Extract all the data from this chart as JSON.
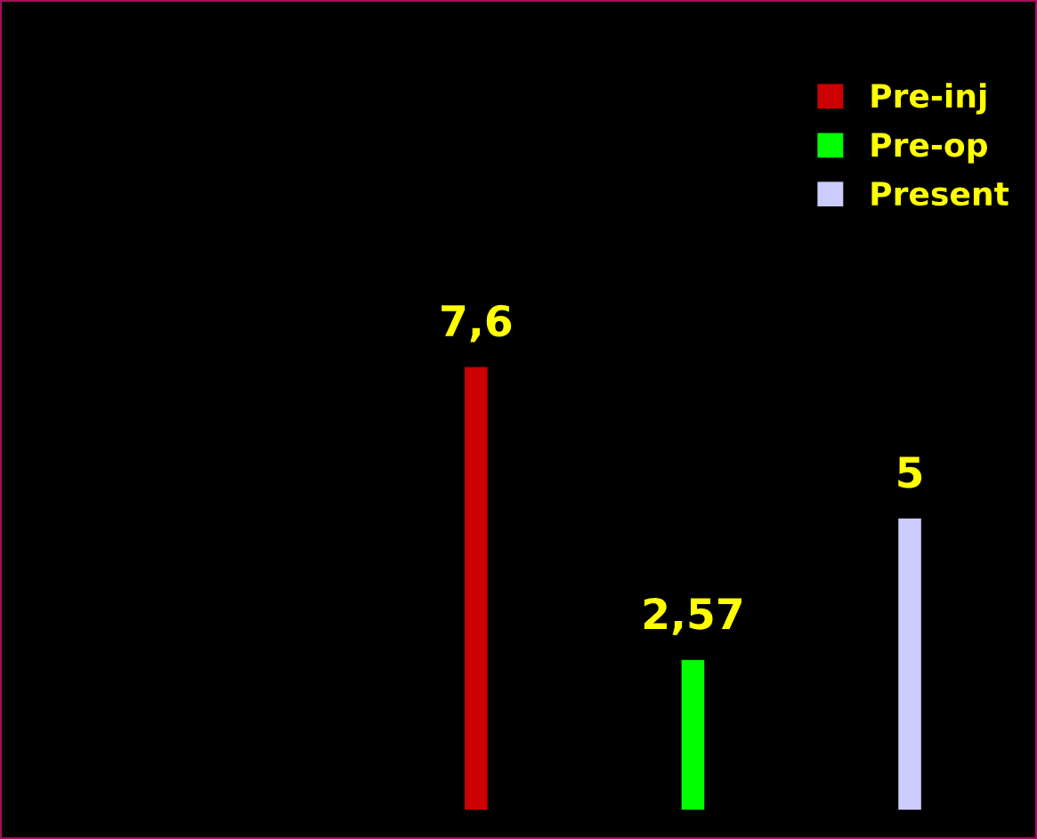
{
  "chart_data": {
    "type": "bar",
    "categories": [
      null,
      null,
      null
    ],
    "stacked": true,
    "series": [
      {
        "name": "Pre-inj",
        "color": "#cc0000",
        "values": [
          7.6,
          null,
          null
        ],
        "value_labels": [
          "7,6",
          null,
          null
        ]
      },
      {
        "name": "Pre-op",
        "color": "#00ff00",
        "values": [
          null,
          2.57,
          null
        ],
        "value_labels": [
          null,
          "2,57",
          null
        ]
      },
      {
        "name": "Present",
        "color": "#ccccff",
        "values": [
          null,
          null,
          5
        ],
        "value_labels": [
          null,
          null,
          "5"
        ]
      }
    ],
    "legend": "top right",
    "grid": false
  }
}
